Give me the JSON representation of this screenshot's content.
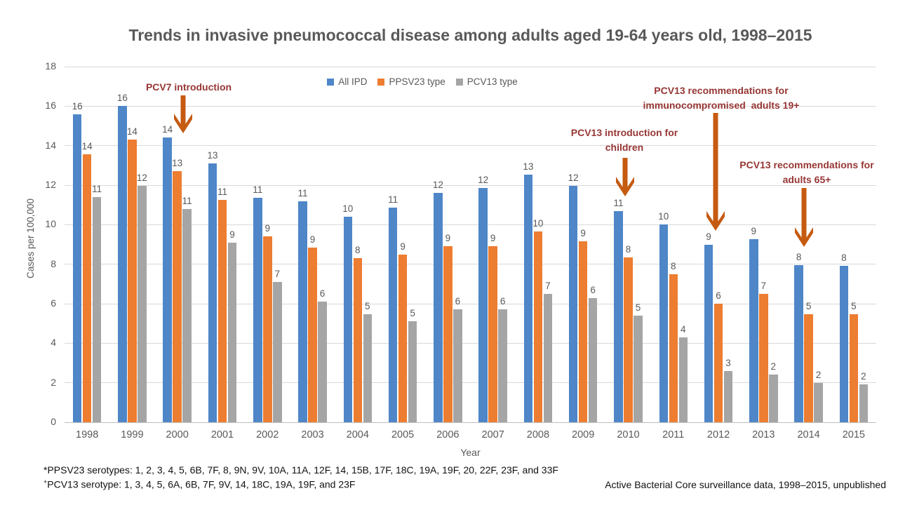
{
  "title": "Trends in invasive pneumococcal disease among adults aged 19-64 years old, 1998–2015",
  "y_axis_title": "Cases per 100,000",
  "x_axis_title": "Year",
  "legend": [
    {
      "label": "All IPD",
      "color": "#4E86C8"
    },
    {
      "label": "PPSV23 type",
      "color": "#ED7D31"
    },
    {
      "label": "PCV13 type",
      "color": "#A5A5A5"
    }
  ],
  "annotations": [
    {
      "line1": "PCV7 introduction",
      "line2": ""
    },
    {
      "line1": "PCV13 introduction for",
      "line2": "children"
    },
    {
      "line1": "PCV13 recommendations for",
      "line2": "immunocompromised  adults 19+"
    },
    {
      "line1": "PCV13 recommendations for",
      "line2": "adults 65+"
    }
  ],
  "footnotes": {
    "line1_marker": "*",
    "line1": "PPSV23 serotypes: 1, 2, 3, 4, 5, 6B, 7F, 8, 9N, 9V, 10A, 11A, 12F, 14, 15B, 17F, 18C, 19A, 19F, 20, 22F, 23F, and 33F",
    "line2_marker": "+",
    "line2": "PCV13 serotype: 1, 3, 4, 5, 6A, 6B, 7F, 9V, 14, 18C, 19A, 19F, and 23F"
  },
  "source": "Active Bacterial Core surveillance data, 1998–2015, unpublished",
  "arrow_color": "#C55A11",
  "chart_data": {
    "type": "bar",
    "categories": [
      "1998",
      "1999",
      "2000",
      "2001",
      "2002",
      "2003",
      "2004",
      "2005",
      "2006",
      "2007",
      "2008",
      "2009",
      "2010",
      "2011",
      "2012",
      "2013",
      "2014",
      "2015"
    ],
    "y_ticks": [
      0,
      2,
      4,
      6,
      8,
      10,
      12,
      14,
      16,
      18
    ],
    "ylim": [
      0,
      18
    ],
    "grid": true,
    "legend_position": "top-center",
    "xlabel": "Year",
    "ylabel": "Cases per 100,000",
    "series": [
      {
        "name": "All IPD",
        "color": "#4E86C8",
        "values": [
          15.6,
          16.0,
          14.4,
          13.1,
          11.35,
          11.2,
          10.4,
          10.85,
          11.6,
          11.85,
          12.55,
          11.95,
          10.7,
          10.0,
          9.0,
          9.25,
          7.95,
          7.9
        ],
        "labels": [
          "16",
          "16",
          "14",
          "13",
          "11",
          "11",
          "10",
          "11",
          "12",
          "12",
          "13",
          "12",
          "11",
          "10",
          "9",
          "9",
          "8",
          "8"
        ]
      },
      {
        "name": "PPSV23 type",
        "color": "#ED7D31",
        "values": [
          13.55,
          14.3,
          12.7,
          11.25,
          9.4,
          8.85,
          8.3,
          8.5,
          8.9,
          8.9,
          9.65,
          9.15,
          8.35,
          7.5,
          6.0,
          6.5,
          5.45,
          5.45
        ],
        "labels": [
          "14",
          "14",
          "13",
          "11",
          "9",
          "9",
          "8",
          "9",
          "9",
          "9",
          "10",
          "9",
          "8",
          "8",
          "6",
          "7",
          "5",
          "5"
        ]
      },
      {
        "name": "PCV13 type",
        "color": "#A5A5A5",
        "values": [
          11.4,
          11.95,
          10.8,
          9.1,
          7.1,
          6.1,
          5.45,
          5.1,
          5.7,
          5.7,
          6.5,
          6.3,
          5.4,
          4.3,
          2.6,
          2.4,
          2.0,
          1.9
        ],
        "labels": [
          "11",
          "12",
          "11",
          "9",
          "7",
          "6",
          "5",
          "5",
          "6",
          "6",
          "7",
          "6",
          "5",
          "4",
          "3",
          "2",
          "2",
          "2"
        ]
      }
    ]
  }
}
